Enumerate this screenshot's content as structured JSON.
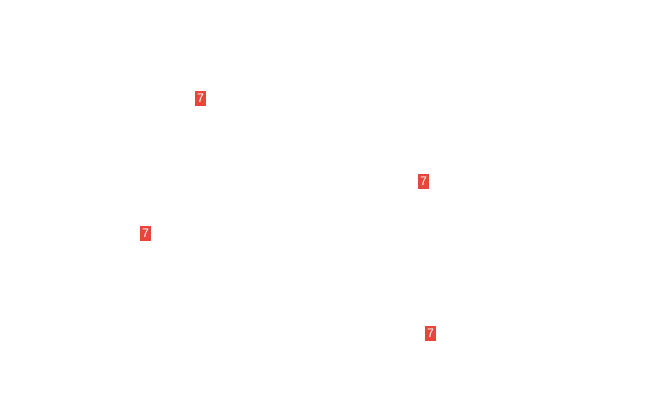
{
  "badge_color": "#e8463c",
  "markers": [
    {
      "label": "7"
    },
    {
      "label": "7"
    },
    {
      "label": "7"
    },
    {
      "label": "7"
    }
  ]
}
